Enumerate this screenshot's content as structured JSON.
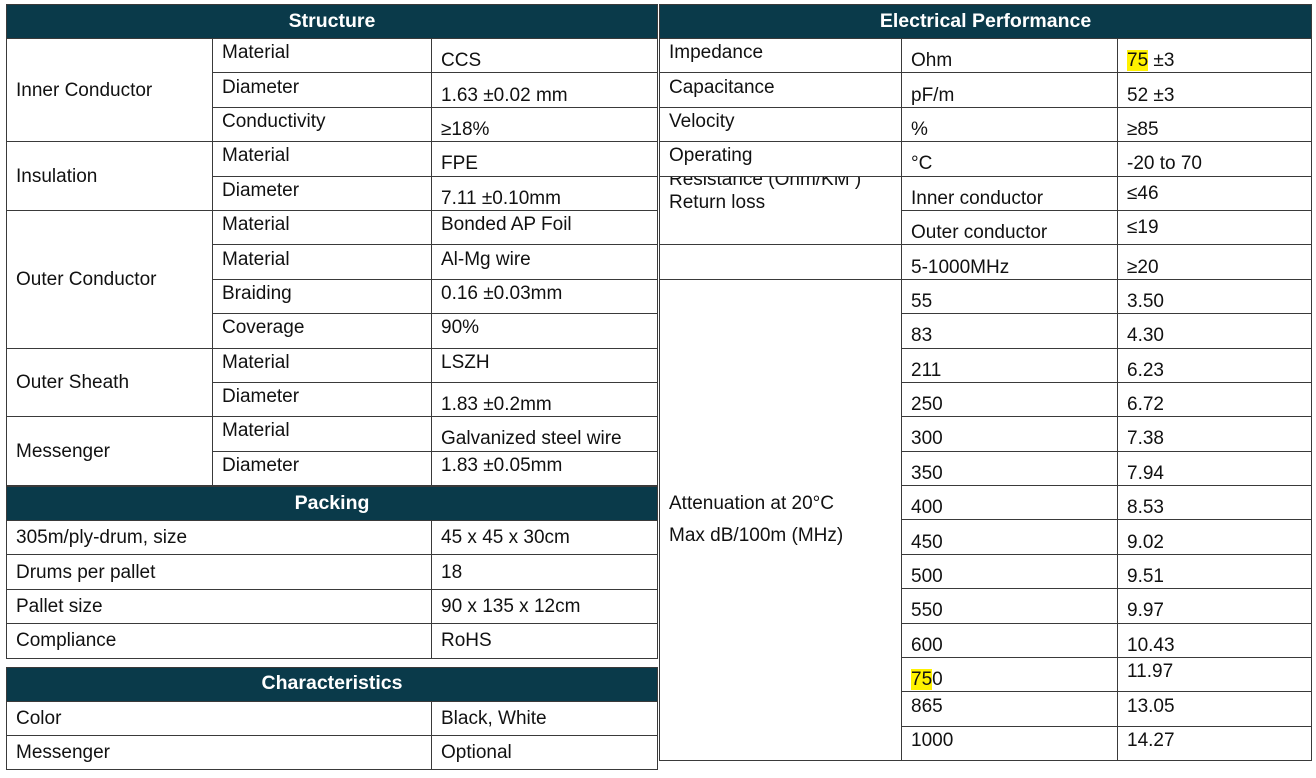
{
  "structure": {
    "title": "Structure",
    "groups": [
      {
        "label": "Inner Conductor",
        "rows": [
          {
            "prop": "Material",
            "value": "CCS"
          },
          {
            "prop": "Diameter",
            "value": "1.63 ±0.02 mm"
          },
          {
            "prop": "Conductivity",
            "value": "≥18%"
          }
        ]
      },
      {
        "label": "Insulation",
        "rows": [
          {
            "prop": "Material",
            "value": "FPE"
          },
          {
            "prop": "Diameter",
            "value": "7.11 ±0.10mm"
          }
        ]
      },
      {
        "label": "Outer Conductor",
        "rows": [
          {
            "prop": "Material",
            "value": "Bonded AP Foil"
          },
          {
            "prop": "Material",
            "value": "Al-Mg wire"
          },
          {
            "prop": "Braiding",
            "value": "0.16 ±0.03mm"
          },
          {
            "prop": "Coverage",
            "value": "90%"
          }
        ]
      },
      {
        "label": "Outer Sheath",
        "rows": [
          {
            "prop": "Material",
            "value": "LSZH"
          },
          {
            "prop": "Diameter",
            "value": "1.83 ±0.2mm"
          }
        ]
      },
      {
        "label": "Messenger",
        "rows": [
          {
            "prop": "Material",
            "value": "Galvanized steel wire"
          },
          {
            "prop": "Diameter",
            "value": "1.83 ±0.05mm"
          }
        ]
      }
    ]
  },
  "packing": {
    "title": "Packing",
    "rows": [
      {
        "label": "305m/ply-drum, size",
        "value": "45 x 45 x 30cm"
      },
      {
        "label": "Drums per pallet",
        "value": "18"
      },
      {
        "label": "Pallet size",
        "value": "90 x 135 x 12cm"
      },
      {
        "label": "Compliance",
        "value": "RoHS"
      }
    ]
  },
  "characteristics": {
    "title": "Characteristics",
    "rows": [
      {
        "label": "Color",
        "value": "Black, White"
      },
      {
        "label": "Messenger",
        "value": "Optional"
      }
    ]
  },
  "electrical": {
    "title": "Electrical Performance",
    "impedance": {
      "label": "Impedance",
      "unit": "Ohm",
      "value_hl": "75",
      "value_rest": " ±3"
    },
    "capacitance": {
      "label": "Capacitance",
      "unit": "pF/m",
      "value": "52 ±3"
    },
    "velocity": {
      "label": "Velocity",
      "unit": "%",
      "value": "≥85"
    },
    "operating": {
      "label": "Operating",
      "unit": "°C",
      "value": "-20 to 70"
    },
    "resistance": {
      "label_line1": "Resistance (Ohm/KM )",
      "label_line2": "Return loss",
      "rows": [
        {
          "unit": "Inner conductor",
          "value": "≤46"
        },
        {
          "unit": "Outer conductor",
          "value": "≤19"
        }
      ]
    },
    "return_loss": {
      "unit": "5-1000MHz",
      "value": "≥20"
    },
    "attenuation": {
      "label_line1": "Attenuation at 20°C",
      "label_line2": "Max dB/100m (MHz)",
      "rows": [
        {
          "freq": "55",
          "value": "3.50"
        },
        {
          "freq": "83",
          "value": "4.30"
        },
        {
          "freq": "211",
          "value": "6.23"
        },
        {
          "freq": "250",
          "value": "6.72"
        },
        {
          "freq": "300",
          "value": "7.38"
        },
        {
          "freq": "350",
          "value": "7.94"
        },
        {
          "freq": "400",
          "value": "8.53"
        },
        {
          "freq": "450",
          "value": "9.02"
        },
        {
          "freq": "500",
          "value": "9.51"
        },
        {
          "freq": "550",
          "value": "9.97"
        },
        {
          "freq": "600",
          "value": "10.43"
        },
        {
          "freq_hl": "75",
          "freq_rest": "0",
          "value": "11.97"
        },
        {
          "freq": "865",
          "value": "13.05"
        },
        {
          "freq": "1000",
          "value": "14.27"
        }
      ]
    }
  },
  "colors": {
    "header_bg": "#0a3a4a",
    "header_text": "#ffffff",
    "highlight": "#fff200"
  }
}
